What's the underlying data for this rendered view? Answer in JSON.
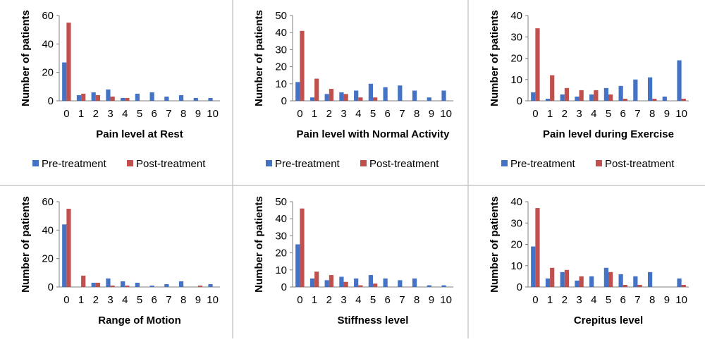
{
  "legend": {
    "pre": "Pre-treatment",
    "post": "Post-treatment"
  },
  "colors": {
    "pre": "#4472c4",
    "post": "#c0504d",
    "axis": "#808080",
    "border": "#c8c8c8"
  },
  "chart_data": [
    {
      "type": "bar",
      "title": "",
      "xlabel": "Pain level at Rest",
      "ylabel": "Number of patients",
      "categories": [
        "0",
        "1",
        "2",
        "3",
        "4",
        "5",
        "6",
        "7",
        "8",
        "9",
        "10"
      ],
      "ylim": [
        0,
        60
      ],
      "yticks": [
        0,
        20,
        40,
        60
      ],
      "legend": "bottom",
      "series": [
        {
          "name": "Pre-treatment",
          "values": [
            27,
            4,
            6,
            8,
            2,
            5,
            6,
            3,
            4,
            2,
            2
          ]
        },
        {
          "name": "Post-treatment",
          "values": [
            55,
            5,
            4,
            3,
            2,
            0,
            0,
            0,
            0,
            0,
            0
          ]
        }
      ]
    },
    {
      "type": "bar",
      "title": "",
      "xlabel": "Pain level with Normal Activity",
      "ylabel": "Number of patients",
      "categories": [
        "0",
        "1",
        "2",
        "3",
        "4",
        "5",
        "6",
        "7",
        "8",
        "9",
        "10"
      ],
      "ylim": [
        0,
        50
      ],
      "yticks": [
        0,
        10,
        20,
        30,
        40,
        50
      ],
      "legend": "bottom",
      "series": [
        {
          "name": "Pre-treatment",
          "values": [
            11,
            2,
            4,
            5,
            6,
            10,
            8,
            9,
            6,
            2,
            6
          ]
        },
        {
          "name": "Post-treatment",
          "values": [
            41,
            13,
            7,
            4,
            2,
            2,
            0,
            0,
            0,
            0,
            0
          ]
        }
      ]
    },
    {
      "type": "bar",
      "title": "",
      "xlabel": "Pain level during Exercise",
      "ylabel": "Number of patients",
      "categories": [
        "0",
        "1",
        "2",
        "3",
        "4",
        "5",
        "6",
        "7",
        "8",
        "9",
        "10"
      ],
      "ylim": [
        0,
        40
      ],
      "yticks": [
        0,
        10,
        20,
        30,
        40
      ],
      "legend": "bottom",
      "series": [
        {
          "name": "Pre-treatment",
          "values": [
            4,
            1,
            3,
            2,
            3,
            6,
            7,
            10,
            11,
            2,
            19
          ]
        },
        {
          "name": "Post-treatment",
          "values": [
            34,
            12,
            6,
            5,
            5,
            3,
            1,
            0,
            1,
            0,
            1
          ]
        }
      ]
    },
    {
      "type": "bar",
      "title": "",
      "xlabel": "Range of Motion",
      "ylabel": "Number of patients",
      "categories": [
        "0",
        "1",
        "2",
        "3",
        "4",
        "5",
        "6",
        "7",
        "8",
        "9",
        "10"
      ],
      "ylim": [
        0,
        60
      ],
      "yticks": [
        0,
        20,
        40,
        60
      ],
      "legend": "none",
      "series": [
        {
          "name": "Pre-treatment",
          "values": [
            44,
            0,
            3,
            6,
            4,
            3,
            1,
            2,
            4,
            0,
            2
          ]
        },
        {
          "name": "Post-treatment",
          "values": [
            55,
            8,
            3,
            1,
            1,
            0,
            0,
            0,
            0,
            1,
            0
          ]
        }
      ]
    },
    {
      "type": "bar",
      "title": "",
      "xlabel": "Stiffness level",
      "ylabel": "Number of patients",
      "categories": [
        "0",
        "1",
        "2",
        "3",
        "4",
        "5",
        "6",
        "7",
        "8",
        "9",
        "10"
      ],
      "ylim": [
        0,
        50
      ],
      "yticks": [
        0,
        10,
        20,
        30,
        40,
        50
      ],
      "legend": "none",
      "series": [
        {
          "name": "Pre-treatment",
          "values": [
            25,
            5,
            4,
            6,
            5,
            7,
            5,
            4,
            5,
            1,
            1
          ]
        },
        {
          "name": "Post-treatment",
          "values": [
            46,
            9,
            7,
            3,
            1,
            2,
            0,
            0,
            0,
            0,
            0
          ]
        }
      ]
    },
    {
      "type": "bar",
      "title": "",
      "xlabel": "Crepitus level",
      "ylabel": "Number of patients",
      "categories": [
        "0",
        "1",
        "2",
        "3",
        "4",
        "5",
        "6",
        "7",
        "8",
        "9",
        "10"
      ],
      "ylim": [
        0,
        40
      ],
      "yticks": [
        0,
        10,
        20,
        30,
        40
      ],
      "legend": "none",
      "series": [
        {
          "name": "Pre-treatment",
          "values": [
            19,
            4,
            7,
            3,
            5,
            9,
            6,
            5,
            7,
            0,
            4
          ]
        },
        {
          "name": "Post-treatment",
          "values": [
            37,
            9,
            8,
            5,
            0,
            7,
            1,
            1,
            0,
            0,
            1
          ]
        }
      ]
    }
  ]
}
